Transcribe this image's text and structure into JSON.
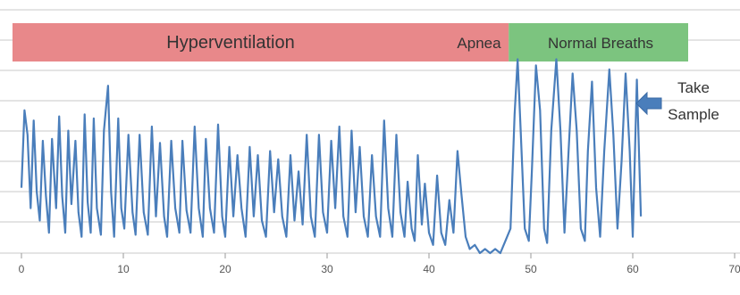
{
  "chart_data": {
    "type": "line",
    "title": "",
    "xlabel": "",
    "ylabel": "",
    "xlim": [
      0,
      70
    ],
    "ylim": [
      0,
      100
    ],
    "x_ticks": [
      "0",
      "10",
      "20",
      "30",
      "40",
      "50",
      "60",
      "70"
    ],
    "y_tick_labels_shown": false,
    "grid": "horizontal",
    "colors": {
      "line": "#4a7ebb",
      "hyper_band": "#e8888a",
      "normal_band": "#7cc47f",
      "arrow": "#4a7ebb"
    },
    "bands": [
      {
        "label": "Hyperventilation",
        "x_start": 0,
        "x_end": 42
      },
      {
        "label": "Apnea",
        "x_start": 42,
        "x_end": 48
      },
      {
        "label": "Normal Breaths",
        "x_start": 48,
        "x_end": 65
      }
    ],
    "annotation": {
      "line1": "Take",
      "line2": "Sample",
      "points_to_x": 61,
      "points_to_y": 70
    },
    "series": [
      {
        "values": [
          [
            0.0,
            32
          ],
          [
            0.3,
            70
          ],
          [
            0.6,
            58
          ],
          [
            0.9,
            22
          ],
          [
            1.2,
            65
          ],
          [
            1.5,
            30
          ],
          [
            1.8,
            16
          ],
          [
            2.1,
            55
          ],
          [
            2.4,
            28
          ],
          [
            2.7,
            10
          ],
          [
            3.0,
            56
          ],
          [
            3.4,
            22
          ],
          [
            3.7,
            67
          ],
          [
            4.0,
            28
          ],
          [
            4.3,
            10
          ],
          [
            4.6,
            60
          ],
          [
            4.9,
            24
          ],
          [
            5.3,
            55
          ],
          [
            5.6,
            20
          ],
          [
            5.9,
            8
          ],
          [
            6.2,
            68
          ],
          [
            6.5,
            25
          ],
          [
            6.8,
            10
          ],
          [
            7.1,
            66
          ],
          [
            7.4,
            22
          ],
          [
            7.8,
            9
          ],
          [
            8.1,
            60
          ],
          [
            8.5,
            82
          ],
          [
            8.8,
            30
          ],
          [
            9.1,
            8
          ],
          [
            9.5,
            66
          ],
          [
            9.8,
            22
          ],
          [
            10.1,
            12
          ],
          [
            10.5,
            58
          ],
          [
            10.9,
            20
          ],
          [
            11.2,
            9
          ],
          [
            11.6,
            58
          ],
          [
            12.0,
            20
          ],
          [
            12.4,
            9
          ],
          [
            12.8,
            62
          ],
          [
            13.2,
            18
          ],
          [
            13.6,
            54
          ],
          [
            14.0,
            18
          ],
          [
            14.3,
            8
          ],
          [
            14.7,
            55
          ],
          [
            15.1,
            22
          ],
          [
            15.5,
            10
          ],
          [
            15.8,
            55
          ],
          [
            16.2,
            21
          ],
          [
            16.6,
            10
          ],
          [
            17.0,
            62
          ],
          [
            17.4,
            22
          ],
          [
            17.8,
            8
          ],
          [
            18.1,
            56
          ],
          [
            18.5,
            22
          ],
          [
            18.9,
            10
          ],
          [
            19.3,
            63
          ],
          [
            19.7,
            18
          ],
          [
            20.0,
            8
          ],
          [
            20.4,
            52
          ],
          [
            20.8,
            18
          ],
          [
            21.2,
            48
          ],
          [
            21.6,
            22
          ],
          [
            22.0,
            8
          ],
          [
            22.4,
            52
          ],
          [
            22.8,
            18
          ],
          [
            23.2,
            48
          ],
          [
            23.6,
            16
          ],
          [
            24.0,
            8
          ],
          [
            24.4,
            50
          ],
          [
            24.8,
            20
          ],
          [
            25.2,
            46
          ],
          [
            25.6,
            18
          ],
          [
            26.0,
            8
          ],
          [
            26.4,
            48
          ],
          [
            26.8,
            16
          ],
          [
            27.2,
            40
          ],
          [
            27.6,
            14
          ],
          [
            28.0,
            58
          ],
          [
            28.4,
            18
          ],
          [
            28.8,
            8
          ],
          [
            29.2,
            58
          ],
          [
            29.6,
            20
          ],
          [
            30.0,
            10
          ],
          [
            30.4,
            55
          ],
          [
            30.8,
            22
          ],
          [
            31.2,
            62
          ],
          [
            31.6,
            18
          ],
          [
            32.0,
            8
          ],
          [
            32.4,
            60
          ],
          [
            32.8,
            20
          ],
          [
            33.2,
            52
          ],
          [
            33.6,
            18
          ],
          [
            34.0,
            8
          ],
          [
            34.4,
            48
          ],
          [
            34.8,
            18
          ],
          [
            35.2,
            8
          ],
          [
            35.6,
            65
          ],
          [
            36.0,
            22
          ],
          [
            36.4,
            8
          ],
          [
            36.8,
            58
          ],
          [
            37.2,
            20
          ],
          [
            37.6,
            8
          ],
          [
            37.9,
            35
          ],
          [
            38.3,
            12
          ],
          [
            38.6,
            6
          ],
          [
            38.9,
            48
          ],
          [
            39.3,
            14
          ],
          [
            39.6,
            34
          ],
          [
            40.0,
            10
          ],
          [
            40.4,
            4
          ],
          [
            40.8,
            38
          ],
          [
            41.2,
            10
          ],
          [
            41.6,
            4
          ],
          [
            42.0,
            26
          ],
          [
            42.4,
            10
          ],
          [
            42.8,
            50
          ],
          [
            43.2,
            28
          ],
          [
            43.6,
            8
          ],
          [
            44.0,
            2
          ],
          [
            44.5,
            4
          ],
          [
            45.0,
            0
          ],
          [
            45.5,
            2
          ],
          [
            46.0,
            0
          ],
          [
            46.5,
            2
          ],
          [
            47.0,
            0
          ],
          [
            47.5,
            6
          ],
          [
            48.0,
            12
          ],
          [
            48.4,
            68
          ],
          [
            48.7,
            95
          ],
          [
            49.0,
            60
          ],
          [
            49.4,
            12
          ],
          [
            49.8,
            6
          ],
          [
            50.1,
            40
          ],
          [
            50.5,
            92
          ],
          [
            50.9,
            70
          ],
          [
            51.3,
            12
          ],
          [
            51.6,
            5
          ],
          [
            52.0,
            60
          ],
          [
            52.5,
            95
          ],
          [
            52.9,
            60
          ],
          [
            53.3,
            10
          ],
          [
            53.7,
            50
          ],
          [
            54.1,
            88
          ],
          [
            54.5,
            60
          ],
          [
            54.9,
            12
          ],
          [
            55.3,
            6
          ],
          [
            55.6,
            50
          ],
          [
            56.0,
            84
          ],
          [
            56.4,
            32
          ],
          [
            56.8,
            8
          ],
          [
            57.2,
            50
          ],
          [
            57.7,
            90
          ],
          [
            58.1,
            58
          ],
          [
            58.5,
            12
          ],
          [
            58.9,
            45
          ],
          [
            59.3,
            88
          ],
          [
            59.7,
            50
          ],
          [
            60.0,
            8
          ],
          [
            60.4,
            85
          ],
          [
            60.8,
            18
          ]
        ]
      }
    ]
  }
}
